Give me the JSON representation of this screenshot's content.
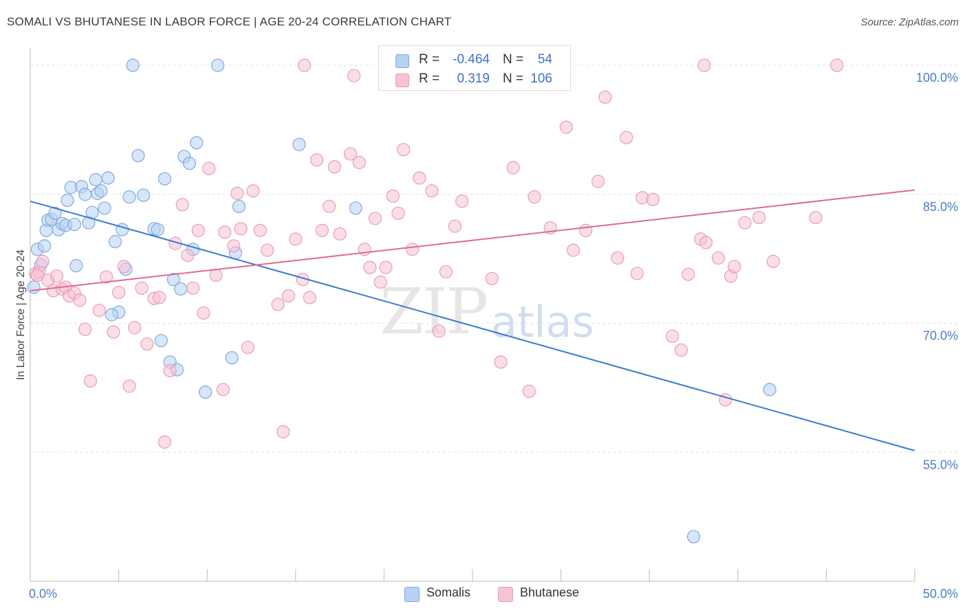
{
  "title": "SOMALI VS BHUTANESE IN LABOR FORCE | AGE 20-24 CORRELATION CHART",
  "source": "Source: ZipAtlas.com",
  "watermark": {
    "zip": "ZIP",
    "atlas": "atlas"
  },
  "legend": {
    "somali": {
      "r_label": "R =",
      "r_value": "-0.464",
      "n_label": "N =",
      "n_value": "54"
    },
    "bhutanese": {
      "r_label": "R =",
      "r_value": "0.319",
      "n_label": "N =",
      "n_value": "106"
    }
  },
  "bottom_legend": {
    "somalis": "Somalis",
    "bhutanese": "Bhutanese"
  },
  "colors": {
    "somali_fill": "#b7d1f3",
    "somali_stroke": "#7fa9e0",
    "somali_line": "#3a78d0",
    "bhutanese_fill": "#f6c3d3",
    "bhutanese_stroke": "#ec9ab5",
    "bhutanese_line": "#e0688f",
    "tick_text": "#4a7cc5",
    "grid": "#e2e2e2"
  },
  "chart_data": {
    "type": "scatter",
    "title": "SOMALI VS BHUTANESE IN LABOR FORCE | AGE 20-24 CORRELATION CHART",
    "xlabel": "",
    "ylabel": "In Labor Force | Age 20-24",
    "xlim": [
      0,
      50
    ],
    "ylim": [
      40,
      102
    ],
    "x_tick_labels": [
      "0.0%",
      "50.0%"
    ],
    "y_ticks": [
      55,
      70,
      85,
      100
    ],
    "y_tick_labels": [
      "55.0%",
      "70.0%",
      "85.0%",
      "100.0%"
    ],
    "grid": true,
    "legend_position": "top-center",
    "series": [
      {
        "name": "Somalis",
        "trend": {
          "x0": 0,
          "y0": 84.2,
          "x1": 50,
          "y1": 55.2
        },
        "points": [
          [
            0.2,
            74.2
          ],
          [
            0.4,
            78.6
          ],
          [
            0.6,
            76.8
          ],
          [
            0.8,
            79.0
          ],
          [
            0.9,
            80.8
          ],
          [
            1.0,
            82.0
          ],
          [
            1.2,
            82.1
          ],
          [
            1.4,
            82.8
          ],
          [
            1.6,
            80.9
          ],
          [
            1.8,
            81.6
          ],
          [
            2.0,
            81.4
          ],
          [
            2.1,
            84.3
          ],
          [
            2.3,
            85.8
          ],
          [
            2.5,
            81.5
          ],
          [
            2.6,
            76.7
          ],
          [
            2.9,
            85.9
          ],
          [
            3.1,
            85.0
          ],
          [
            3.3,
            81.7
          ],
          [
            3.5,
            82.9
          ],
          [
            3.7,
            86.7
          ],
          [
            3.8,
            85.1
          ],
          [
            4.0,
            85.4
          ],
          [
            4.2,
            83.4
          ],
          [
            4.4,
            86.9
          ],
          [
            4.8,
            79.5
          ],
          [
            5.0,
            71.3
          ],
          [
            5.2,
            80.9
          ],
          [
            5.4,
            76.3
          ],
          [
            4.6,
            71.0
          ],
          [
            5.6,
            84.7
          ],
          [
            5.8,
            100.0
          ],
          [
            6.1,
            89.5
          ],
          [
            6.4,
            84.9
          ],
          [
            7.0,
            81.0
          ],
          [
            7.2,
            80.9
          ],
          [
            7.4,
            68.0
          ],
          [
            7.6,
            86.8
          ],
          [
            7.9,
            65.5
          ],
          [
            8.1,
            75.1
          ],
          [
            8.3,
            64.6
          ],
          [
            8.5,
            74.0
          ],
          [
            8.7,
            89.4
          ],
          [
            9.0,
            88.6
          ],
          [
            9.2,
            78.6
          ],
          [
            9.4,
            91.0
          ],
          [
            9.9,
            62.0
          ],
          [
            10.6,
            100.0
          ],
          [
            11.4,
            66.0
          ],
          [
            11.6,
            78.2
          ],
          [
            11.8,
            83.6
          ],
          [
            15.2,
            90.8
          ],
          [
            18.4,
            83.4
          ],
          [
            41.8,
            62.3
          ],
          [
            37.5,
            45.2
          ]
        ]
      },
      {
        "name": "Bhutanese",
        "trend": {
          "x0": 0,
          "y0": 73.8,
          "x1": 50,
          "y1": 85.5
        },
        "points": [
          [
            0.3,
            75.8
          ],
          [
            0.5,
            76.0
          ],
          [
            0.7,
            77.2
          ],
          [
            1.0,
            75.0
          ],
          [
            1.3,
            73.8
          ],
          [
            1.5,
            75.5
          ],
          [
            1.8,
            74.0
          ],
          [
            2.0,
            74.2
          ],
          [
            2.2,
            73.2
          ],
          [
            2.5,
            73.5
          ],
          [
            2.8,
            72.7
          ],
          [
            3.1,
            69.3
          ],
          [
            3.4,
            63.3
          ],
          [
            3.9,
            71.5
          ],
          [
            4.3,
            75.4
          ],
          [
            4.7,
            69.0
          ],
          [
            5.0,
            73.6
          ],
          [
            5.3,
            76.6
          ],
          [
            5.6,
            62.7
          ],
          [
            5.9,
            69.5
          ],
          [
            6.3,
            74.1
          ],
          [
            6.6,
            67.6
          ],
          [
            7.0,
            72.9
          ],
          [
            7.3,
            73.0
          ],
          [
            7.6,
            56.2
          ],
          [
            7.9,
            64.5
          ],
          [
            8.2,
            79.3
          ],
          [
            8.6,
            83.8
          ],
          [
            8.9,
            77.9
          ],
          [
            9.2,
            74.1
          ],
          [
            9.5,
            80.8
          ],
          [
            9.8,
            71.2
          ],
          [
            10.1,
            88.0
          ],
          [
            10.5,
            75.6
          ],
          [
            10.9,
            62.3
          ],
          [
            11.0,
            80.6
          ],
          [
            11.5,
            79.0
          ],
          [
            11.7,
            85.1
          ],
          [
            11.9,
            81.0
          ],
          [
            12.3,
            67.2
          ],
          [
            12.6,
            85.4
          ],
          [
            13.0,
            80.8
          ],
          [
            13.4,
            78.5
          ],
          [
            14.0,
            72.2
          ],
          [
            14.3,
            57.4
          ],
          [
            14.6,
            73.2
          ],
          [
            15.0,
            79.8
          ],
          [
            15.4,
            75.1
          ],
          [
            15.8,
            73.0
          ],
          [
            16.2,
            89.0
          ],
          [
            16.5,
            80.8
          ],
          [
            16.9,
            83.6
          ],
          [
            17.2,
            88.2
          ],
          [
            17.5,
            80.4
          ],
          [
            18.1,
            89.7
          ],
          [
            18.3,
            98.8
          ],
          [
            18.6,
            88.7
          ],
          [
            18.9,
            78.6
          ],
          [
            19.2,
            76.5
          ],
          [
            19.5,
            82.2
          ],
          [
            19.8,
            74.8
          ],
          [
            20.1,
            76.5
          ],
          [
            20.5,
            84.8
          ],
          [
            20.8,
            82.8
          ],
          [
            21.1,
            90.2
          ],
          [
            21.6,
            78.6
          ],
          [
            22.0,
            86.9
          ],
          [
            22.7,
            85.4
          ],
          [
            23.1,
            69.1
          ],
          [
            23.5,
            76.0
          ],
          [
            24.0,
            81.3
          ],
          [
            24.4,
            84.2
          ],
          [
            26.1,
            75.2
          ],
          [
            26.6,
            65.5
          ],
          [
            27.3,
            88.1
          ],
          [
            28.2,
            62.1
          ],
          [
            28.5,
            84.7
          ],
          [
            29.4,
            81.1
          ],
          [
            30.3,
            92.8
          ],
          [
            30.7,
            78.5
          ],
          [
            31.4,
            80.8
          ],
          [
            32.1,
            86.5
          ],
          [
            32.5,
            96.3
          ],
          [
            33.2,
            77.6
          ],
          [
            33.7,
            91.6
          ],
          [
            34.3,
            75.8
          ],
          [
            34.6,
            84.6
          ],
          [
            35.2,
            84.4
          ],
          [
            36.3,
            68.5
          ],
          [
            36.8,
            66.9
          ],
          [
            37.2,
            75.7
          ],
          [
            37.9,
            79.8
          ],
          [
            38.2,
            79.4
          ],
          [
            38.9,
            77.6
          ],
          [
            39.3,
            61.1
          ],
          [
            39.6,
            75.5
          ],
          [
            39.8,
            76.6
          ],
          [
            40.4,
            81.7
          ],
          [
            41.2,
            82.3
          ],
          [
            42.0,
            77.2
          ],
          [
            44.4,
            82.3
          ],
          [
            45.6,
            100.0
          ],
          [
            15.5,
            100.0
          ],
          [
            38.1,
            100.0
          ],
          [
            26.5,
            100.0
          ],
          [
            0.4,
            75.6
          ]
        ]
      }
    ]
  }
}
